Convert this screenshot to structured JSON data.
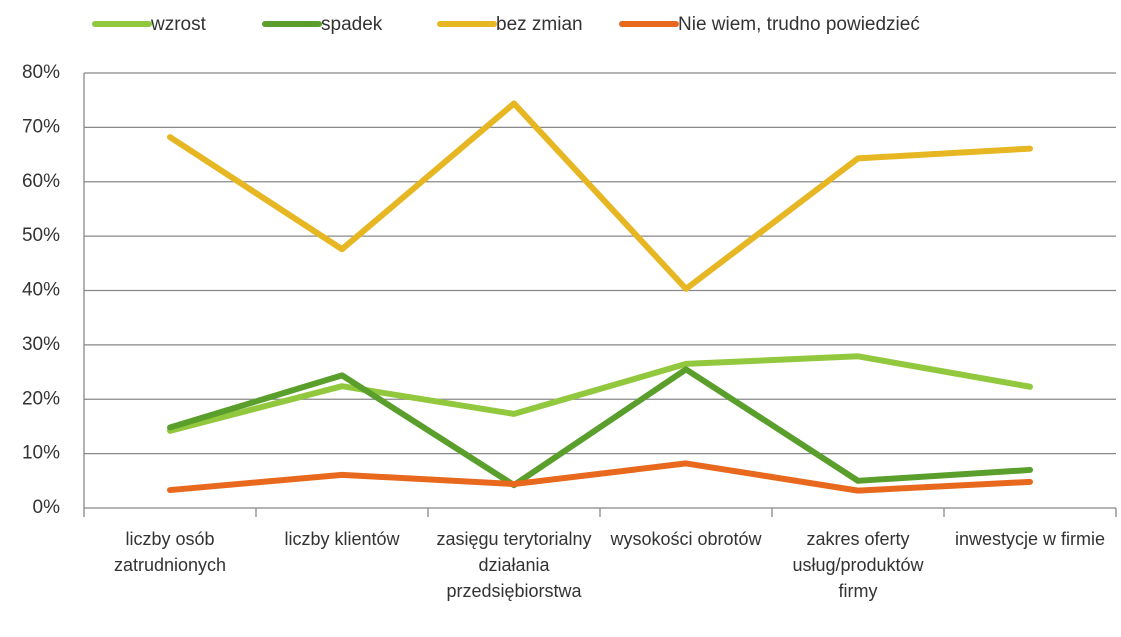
{
  "chart_data": {
    "type": "line",
    "categories": [
      "liczby osób zatrudnionych",
      "liczby klientów",
      "zasięgu terytorialny działania przedsiębiorstwa",
      "wysokości obrotów",
      "zakres oferty usług/produktów firmy",
      "inwestycje w firmie"
    ],
    "series": [
      {
        "name": "wzrost",
        "color": "#92c83e",
        "values": [
          14.2,
          22.4,
          17.3,
          26.5,
          27.9,
          22.3
        ]
      },
      {
        "name": "spadek",
        "color": "#5a9e2c",
        "values": [
          14.8,
          24.4,
          4.2,
          25.5,
          5.0,
          7.0
        ]
      },
      {
        "name": "bez zmian",
        "color": "#e6b723",
        "values": [
          68.2,
          47.6,
          74.4,
          40.3,
          64.3,
          66.1
        ]
      },
      {
        "name": "Nie wiem, trudno powiedzieć",
        "color": "#e8691e",
        "values": [
          3.3,
          6.1,
          4.4,
          8.2,
          3.2,
          4.8
        ]
      }
    ],
    "ylim": [
      0,
      80
    ],
    "yticks": [
      {
        "value": 0,
        "label": "0%"
      },
      {
        "value": 10,
        "label": "10%"
      },
      {
        "value": 20,
        "label": "20%"
      },
      {
        "value": 30,
        "label": "30%"
      },
      {
        "value": 40,
        "label": "40%"
      },
      {
        "value": 50,
        "label": "50%"
      },
      {
        "value": 60,
        "label": "60%"
      },
      {
        "value": 70,
        "label": "70%"
      },
      {
        "value": 80,
        "label": "80%"
      }
    ],
    "grid": true,
    "legend": "top"
  }
}
